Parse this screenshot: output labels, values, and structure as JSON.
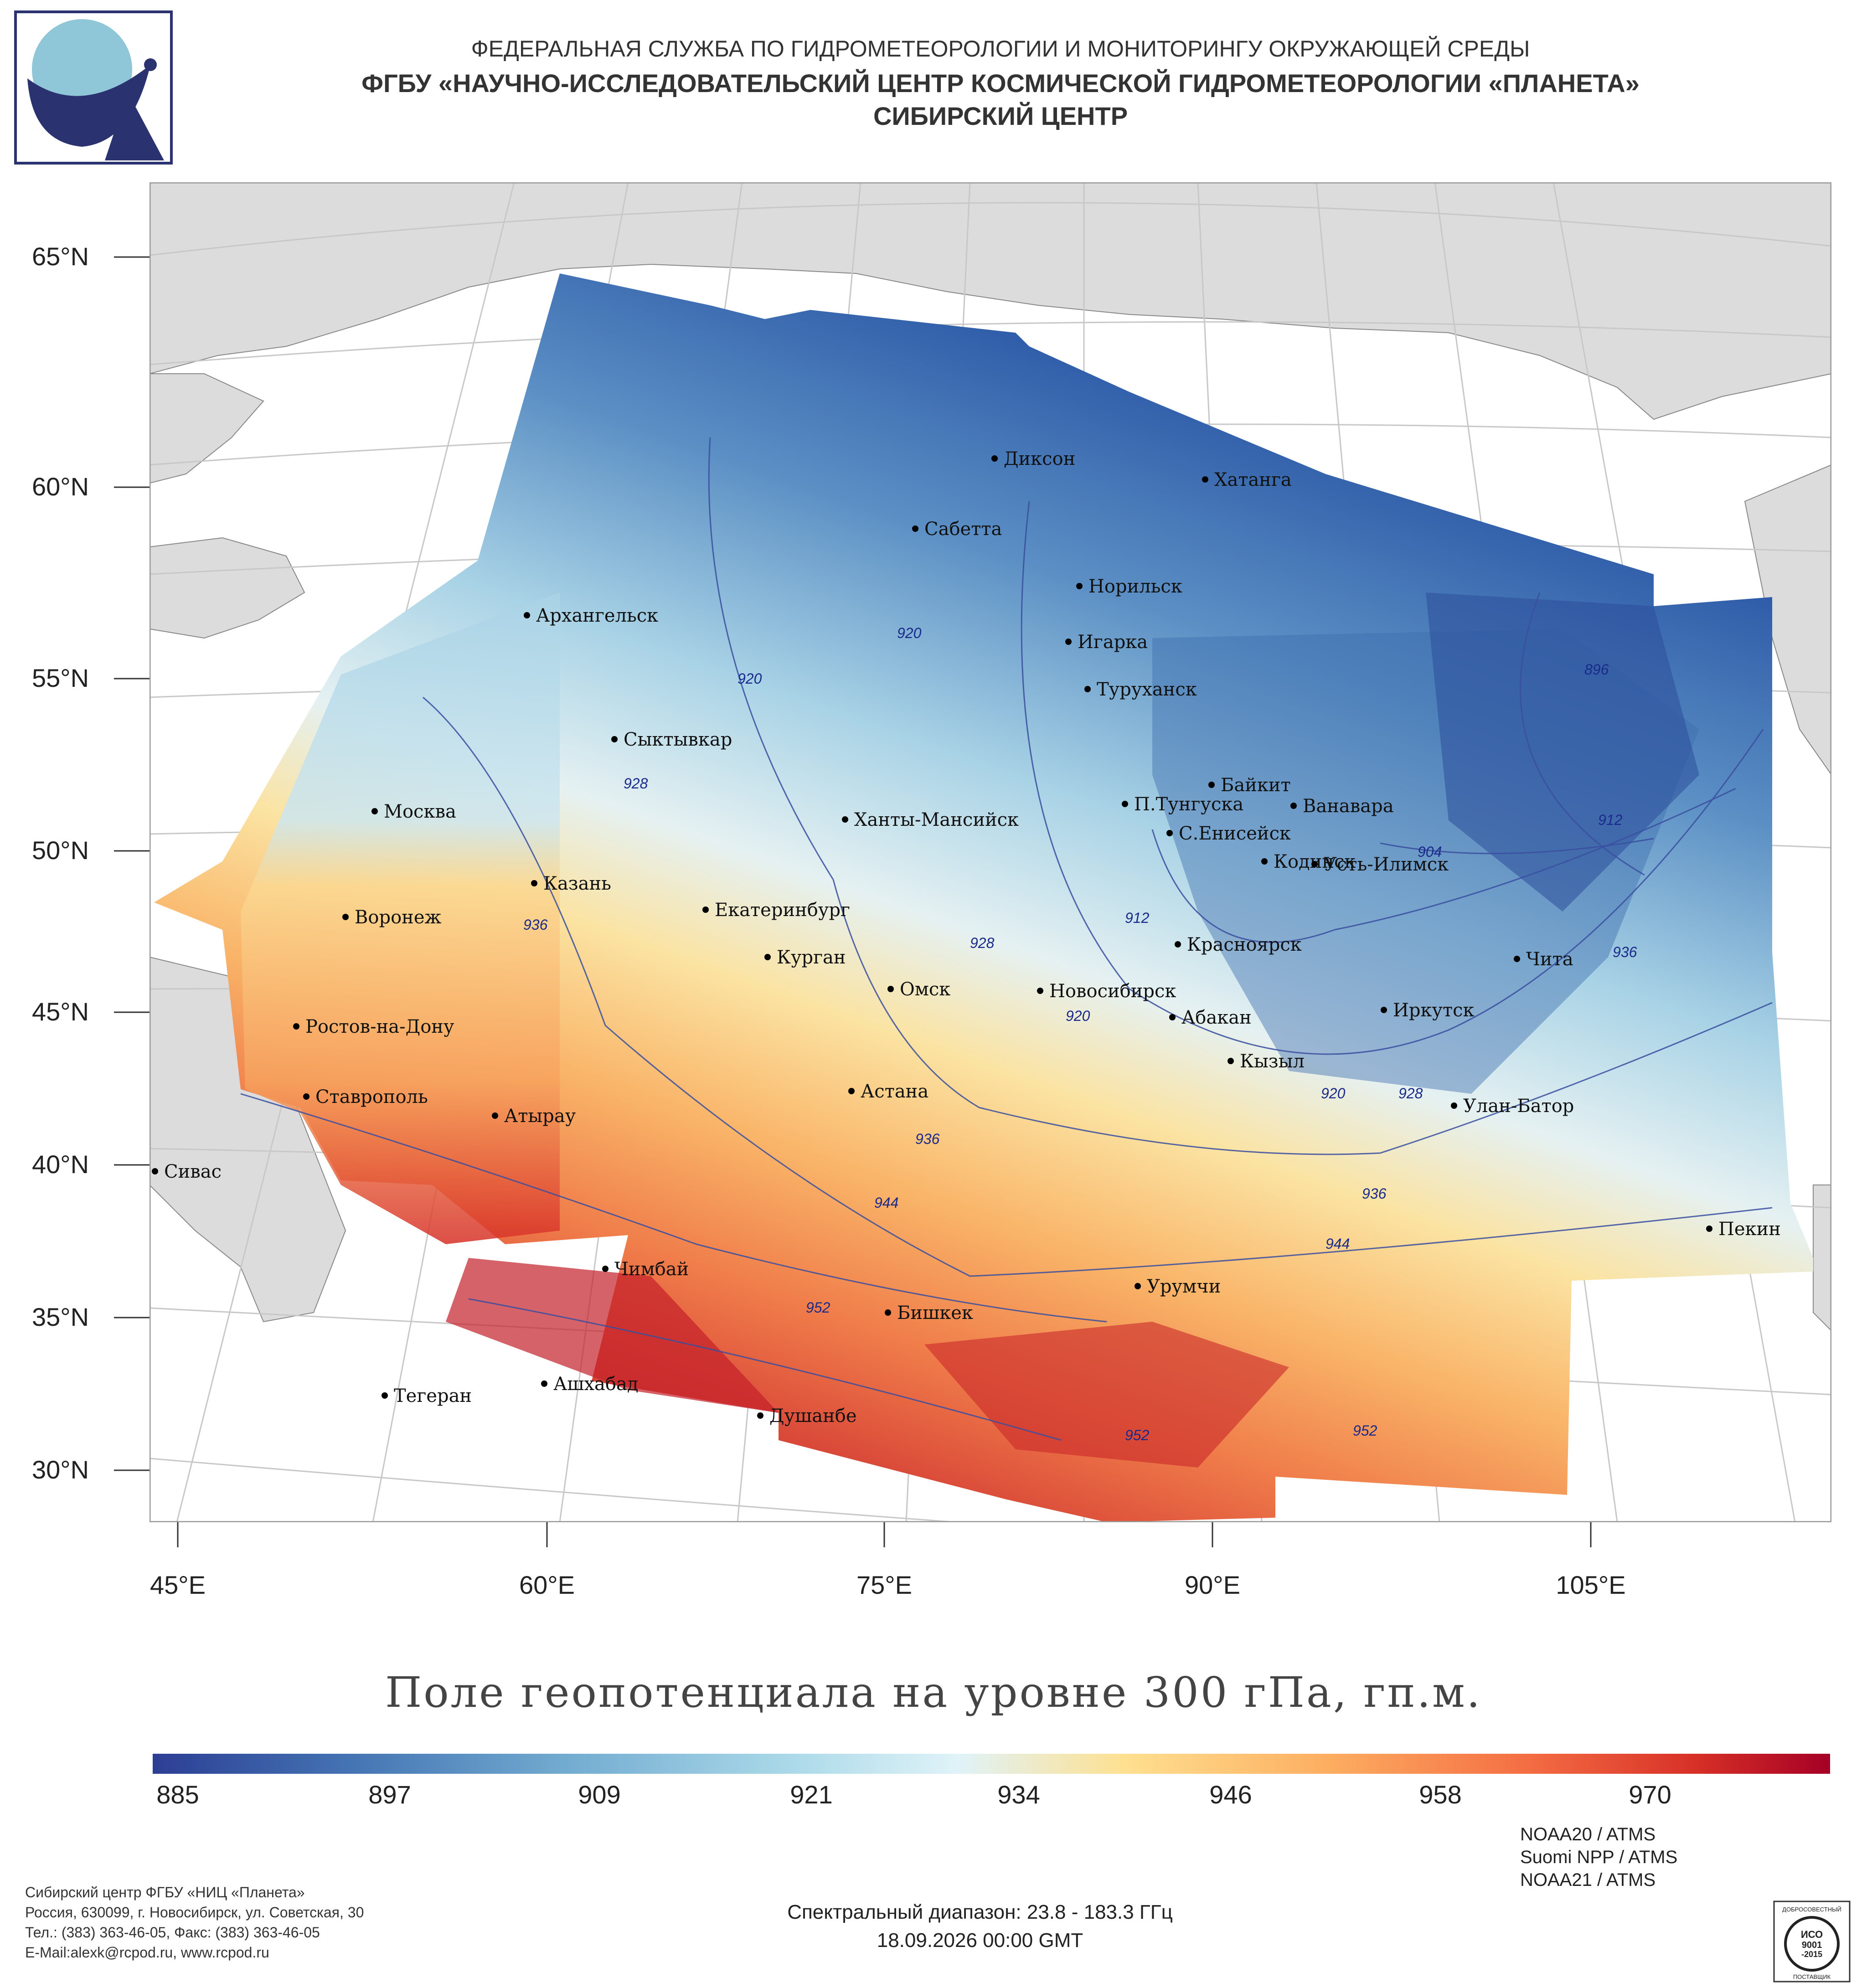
{
  "header": {
    "line1": "ФЕДЕРАЛЬНАЯ СЛУЖБА ПО ГИДРОМЕТЕОРОЛОГИИ И МОНИТОРИНГУ ОКРУЖАЮЩЕЙ СРЕДЫ",
    "line2": "ФГБУ «НАУЧНО-ИССЛЕДОВАТЕЛЬСКИЙ ЦЕНТР КОСМИЧЕСКОЙ ГИДРОМЕТЕОРОЛОГИИ «ПЛАНЕТА»",
    "line3": "СИБИРСКИЙ ЦЕНТР"
  },
  "latitude_labels": [
    "65°N",
    "60°N",
    "55°N",
    "50°N",
    "45°N",
    "40°N",
    "35°N",
    "30°N"
  ],
  "longitude_labels": [
    "45°E",
    "60°E",
    "75°E",
    "90°E",
    "105°E"
  ],
  "cities": [
    {
      "name": "Диксон"
    },
    {
      "name": "Хатанга"
    },
    {
      "name": "Сабетта"
    },
    {
      "name": "Норильск"
    },
    {
      "name": "Архангельск"
    },
    {
      "name": "Игарка"
    },
    {
      "name": "Туруханск"
    },
    {
      "name": "Сыктывкар"
    },
    {
      "name": "Байкит"
    },
    {
      "name": "Москва"
    },
    {
      "name": "П.Тунгуска"
    },
    {
      "name": "Ванавара"
    },
    {
      "name": "Ханты-Мансийск"
    },
    {
      "name": "С.Енисейск"
    },
    {
      "name": "Кодинск"
    },
    {
      "name": "Усть-Илимск"
    },
    {
      "name": "Казань"
    },
    {
      "name": "Екатеринбург"
    },
    {
      "name": "Воронеж"
    },
    {
      "name": "Красноярск"
    },
    {
      "name": "Курган"
    },
    {
      "name": "Чита"
    },
    {
      "name": "Омск"
    },
    {
      "name": "Новосибирск"
    },
    {
      "name": "Иркутск"
    },
    {
      "name": "Ростов-на-Дону"
    },
    {
      "name": "Абакан"
    },
    {
      "name": "Кызыл"
    },
    {
      "name": "Астана"
    },
    {
      "name": "Ставрополь"
    },
    {
      "name": "Улан-Батор"
    },
    {
      "name": "Атырау"
    },
    {
      "name": "Сивас"
    },
    {
      "name": "Пекин"
    },
    {
      "name": "Чимбай"
    },
    {
      "name": "Урумчи"
    },
    {
      "name": "Бишкек"
    },
    {
      "name": "Тегеран"
    },
    {
      "name": "Ашхабад"
    },
    {
      "name": "Душанбе"
    }
  ],
  "contour_labels": [
    "896",
    "904",
    "912",
    "920",
    "928",
    "936",
    "944",
    "952"
  ],
  "title": "Поле геопотенциала на уровне 300 гПа, гп.м.",
  "colorbar": {
    "ticks": [
      "885",
      "897",
      "909",
      "921",
      "934",
      "946",
      "958",
      "970"
    ],
    "colors": [
      "#2c3e94",
      "#4575b4",
      "#74add1",
      "#abd9e9",
      "#e0f3f8",
      "#fee090",
      "#fdae61",
      "#f46d43",
      "#d73027",
      "#a50026"
    ]
  },
  "footer": {
    "org_lines": [
      "Сибирский центр ФГБУ «НИЦ «Планета»",
      "Россия, 630099, г. Новосибирск, ул. Советская, 30",
      "Тел.: (383) 363-46-05, Факс: (383) 363-46-05",
      "E-Mail:alexk@rcpod.ru, www.rcpod.ru"
    ],
    "spectral": "Спектральный диапазон: 23.8 - 183.3 ГГц",
    "datetime": "18.09.2026 00:00 GMT",
    "sensors": [
      "NOAA20 / ATMS",
      "Suomi NPP / ATMS",
      "NOAA21 / ATMS"
    ],
    "iso_text": [
      "ДОБРОСОВЕСТНЫЙ",
      "ИСО",
      "9001",
      "-2015",
      "ПОСТАВЩИК"
    ]
  }
}
